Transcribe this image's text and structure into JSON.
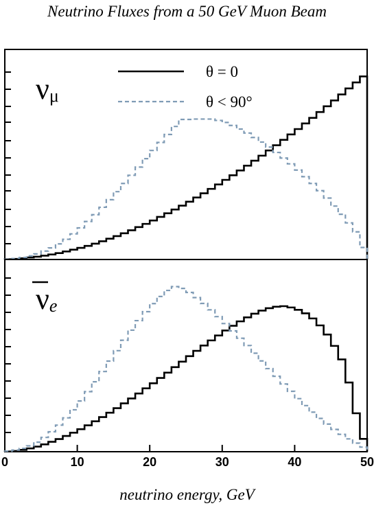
{
  "title": "Neutrino Fluxes from a 50 GeV Muon Beam",
  "colors": {
    "theta0": "#000000",
    "theta90": "#7f9bb5"
  },
  "chart_data": [
    {
      "type": "line",
      "step": true,
      "panel_label": {
        "symbol": "ν",
        "subscript": "μ"
      },
      "xlabel": "neutrino energy, GeV",
      "xlim": [
        0,
        50
      ],
      "xticks": [
        0,
        10,
        20,
        30,
        40,
        50
      ],
      "ylim": [
        0,
        1.05
      ],
      "legend_position": "top-center",
      "bin_edges": [
        0,
        1,
        2,
        3,
        4,
        5,
        6,
        7,
        8,
        9,
        10,
        11,
        12,
        13,
        14,
        15,
        16,
        17,
        18,
        19,
        20,
        21,
        22,
        23,
        24,
        25,
        26,
        27,
        28,
        29,
        30,
        31,
        32,
        33,
        34,
        35,
        36,
        37,
        38,
        39,
        40,
        41,
        42,
        43,
        44,
        45,
        46,
        47,
        48,
        49,
        50
      ],
      "series": [
        {
          "name": "θ = 0",
          "values": [
            0.001,
            0.003,
            0.006,
            0.01,
            0.014,
            0.019,
            0.025,
            0.032,
            0.04,
            0.049,
            0.058,
            0.068,
            0.079,
            0.091,
            0.104,
            0.117,
            0.131,
            0.146,
            0.162,
            0.178,
            0.195,
            0.213,
            0.231,
            0.25,
            0.269,
            0.289,
            0.31,
            0.331,
            0.353,
            0.375,
            0.398,
            0.421,
            0.445,
            0.469,
            0.494,
            0.519,
            0.545,
            0.571,
            0.598,
            0.625,
            0.652,
            0.68,
            0.708,
            0.737,
            0.766,
            0.795,
            0.825,
            0.855,
            0.885,
            0.915
          ]
        },
        {
          "name": "θ < 90°",
          "values": [
            0.001,
            0.005,
            0.01,
            0.018,
            0.028,
            0.042,
            0.058,
            0.078,
            0.101,
            0.128,
            0.158,
            0.19,
            0.224,
            0.261,
            0.299,
            0.339,
            0.38,
            0.421,
            0.462,
            0.504,
            0.545,
            0.585,
            0.625,
            0.665,
            0.7,
            0.7,
            0.702,
            0.702,
            0.702,
            0.695,
            0.685,
            0.67,
            0.652,
            0.632,
            0.61,
            0.587,
            0.562,
            0.535,
            0.507,
            0.478,
            0.447,
            0.414,
            0.38,
            0.344,
            0.307,
            0.267,
            0.226,
            0.183,
            0.138,
            0.06
          ]
        }
      ]
    },
    {
      "type": "line",
      "step": true,
      "panel_label": {
        "symbol": "ν",
        "subscript": "e",
        "overline": true
      },
      "xlabel": "neutrino energy, GeV",
      "xlim": [
        0,
        50
      ],
      "xticks": [
        0,
        10,
        20,
        30,
        40,
        50
      ],
      "ylim": [
        0,
        1.05
      ],
      "bin_edges": [
        0,
        1,
        2,
        3,
        4,
        5,
        6,
        7,
        8,
        9,
        10,
        11,
        12,
        13,
        14,
        15,
        16,
        17,
        18,
        19,
        20,
        21,
        22,
        23,
        24,
        25,
        26,
        27,
        28,
        29,
        30,
        31,
        32,
        33,
        34,
        35,
        36,
        37,
        38,
        39,
        40,
        41,
        42,
        43,
        44,
        45,
        46,
        47,
        48,
        49,
        50
      ],
      "series": [
        {
          "name": "θ = 0",
          "values": [
            0.001,
            0.004,
            0.01,
            0.018,
            0.028,
            0.04,
            0.054,
            0.069,
            0.086,
            0.104,
            0.123,
            0.144,
            0.166,
            0.189,
            0.213,
            0.238,
            0.264,
            0.291,
            0.318,
            0.346,
            0.374,
            0.403,
            0.432,
            0.462,
            0.492,
            0.522,
            0.551,
            0.58,
            0.608,
            0.635,
            0.662,
            0.688,
            0.712,
            0.734,
            0.754,
            0.771,
            0.784,
            0.792,
            0.795,
            0.788,
            0.775,
            0.756,
            0.728,
            0.69,
            0.64,
            0.578,
            0.504,
            0.378,
            0.21,
            0.07
          ]
        },
        {
          "name": "θ < 90°",
          "values": [
            0.003,
            0.009,
            0.018,
            0.032,
            0.052,
            0.078,
            0.109,
            0.145,
            0.185,
            0.229,
            0.277,
            0.328,
            0.382,
            0.438,
            0.495,
            0.552,
            0.609,
            0.664,
            0.716,
            0.765,
            0.809,
            0.848,
            0.881,
            0.902,
            0.892,
            0.87,
            0.842,
            0.81,
            0.775,
            0.738,
            0.7,
            0.66,
            0.62,
            0.58,
            0.538,
            0.496,
            0.454,
            0.412,
            0.37,
            0.33,
            0.29,
            0.252,
            0.216,
            0.182,
            0.151,
            0.122,
            0.095,
            0.07,
            0.047,
            0.025
          ]
        }
      ]
    }
  ]
}
